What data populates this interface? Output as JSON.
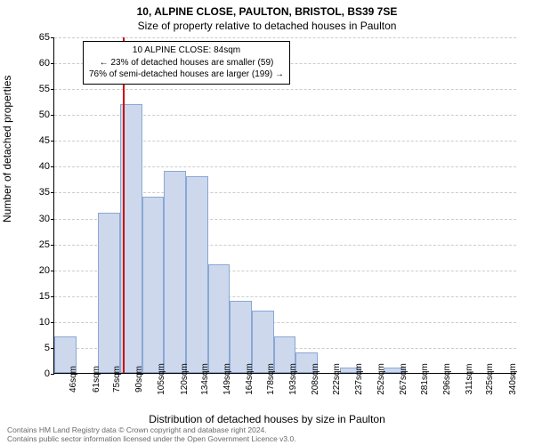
{
  "title_main": "10, ALPINE CLOSE, PAULTON, BRISTOL, BS39 7SE",
  "title_sub": "Size of property relative to detached houses in Paulton",
  "ylabel": "Number of detached properties",
  "xlabel": "Distribution of detached houses by size in Paulton",
  "chart": {
    "type": "histogram",
    "ylim": [
      0,
      65
    ],
    "ytick_step": 5,
    "background_color": "#ffffff",
    "grid_color": "#cccccc",
    "bar_fill": "#cdd8ec",
    "bar_border": "#8aa7d6",
    "ref_line_color": "#d00000",
    "ref_line_x": 84,
    "xlim": [
      38,
      348
    ],
    "xticks": [
      46,
      61,
      75,
      90,
      105,
      120,
      134,
      149,
      164,
      178,
      193,
      208,
      222,
      237,
      252,
      267,
      281,
      296,
      311,
      325,
      340
    ],
    "xtick_suffix": "sqm",
    "bin_width": 14.7,
    "bins_start": 38,
    "values": [
      7,
      0,
      31,
      52,
      34,
      39,
      38,
      21,
      14,
      12,
      7,
      4,
      0,
      1,
      0,
      1,
      0,
      0,
      0,
      0,
      0
    ],
    "title_fontsize": 12,
    "label_fontsize": 12,
    "tick_fontsize": 10
  },
  "annotation": {
    "line1": "10 ALPINE CLOSE: 84sqm",
    "line2": "← 23% of detached houses are smaller (59)",
    "line3": "76% of semi-detached houses are larger (199) →"
  },
  "footer": {
    "line1": "Contains HM Land Registry data © Crown copyright and database right 2024.",
    "line2": "Contains public sector information licensed under the Open Government Licence v3.0."
  }
}
